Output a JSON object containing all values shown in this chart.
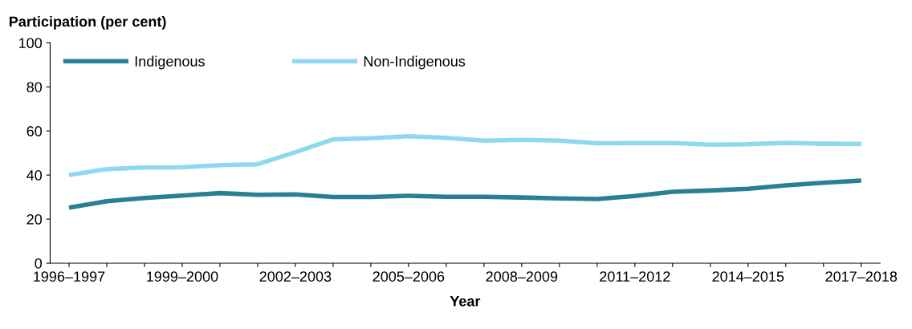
{
  "chart_data": {
    "type": "line",
    "xlabel": "Year",
    "ylabel": "Participation (per cent)",
    "categories": [
      "1996–1997",
      null,
      null,
      "1999–2000",
      null,
      null,
      "2002–2003",
      null,
      null,
      "2005–2006",
      null,
      null,
      "2008–2009",
      null,
      null,
      "2011–2012",
      null,
      null,
      "2014–2015",
      null,
      null,
      "2017–2018"
    ],
    "series": [
      {
        "name": "Indigenous",
        "color": "#2b7f92",
        "values": [
          25.2,
          28.1,
          29.6,
          30.7,
          31.8,
          31.0,
          31.2,
          30.0,
          30.0,
          30.6,
          30.1,
          30.1,
          29.8,
          29.4,
          29.1,
          30.5,
          32.4,
          33.0,
          33.8,
          35.3,
          36.5,
          37.5
        ]
      },
      {
        "name": "Non-Indigenous",
        "color": "#8fd9f0",
        "values": [
          40.0,
          42.7,
          43.4,
          43.5,
          44.5,
          44.9,
          50.4,
          56.2,
          56.7,
          57.6,
          56.9,
          55.6,
          56.0,
          55.6,
          54.4,
          54.5,
          54.5,
          53.8,
          54.0,
          54.6,
          54.2,
          54.1
        ]
      }
    ],
    "ylim": [
      0,
      100
    ],
    "yticks": [
      0,
      20,
      40,
      60,
      80,
      100
    ],
    "grid": false,
    "legend": "top left",
    "marker": "none",
    "line_style": "solid"
  }
}
